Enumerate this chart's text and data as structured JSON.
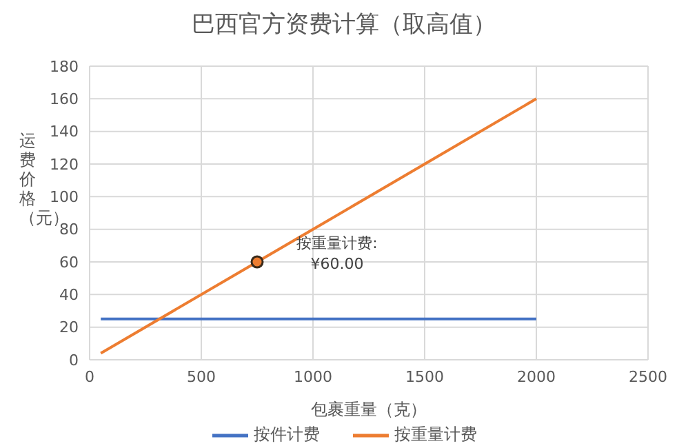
{
  "chart_data": {
    "type": "line",
    "title": "巴西官方资费计算（取高值）",
    "xlabel": "包裹重量（克）",
    "ylabel": "运费价格（元）",
    "xlim": [
      0,
      2500
    ],
    "xticks": [
      0,
      500,
      1000,
      1500,
      2000,
      2500
    ],
    "ylim": [
      0,
      180
    ],
    "yticks": [
      0,
      20,
      40,
      60,
      80,
      100,
      120,
      140,
      160,
      180
    ],
    "grid": true,
    "legend": "bottom",
    "marker": "none",
    "line_style": "solid",
    "series": [
      {
        "name": "按件计费",
        "color": "#4472c4",
        "x": [
          50,
          2000
        ],
        "values": [
          25,
          25
        ]
      },
      {
        "name": "按重量计费",
        "color": "#ed7d31",
        "x": [
          50,
          750,
          1000,
          1500,
          2000
        ],
        "values": [
          4,
          60,
          80,
          120,
          160
        ]
      }
    ],
    "annotations": [
      {
        "text": "按重量计费:\n¥60.00",
        "x": 750,
        "y": 60
      }
    ]
  }
}
